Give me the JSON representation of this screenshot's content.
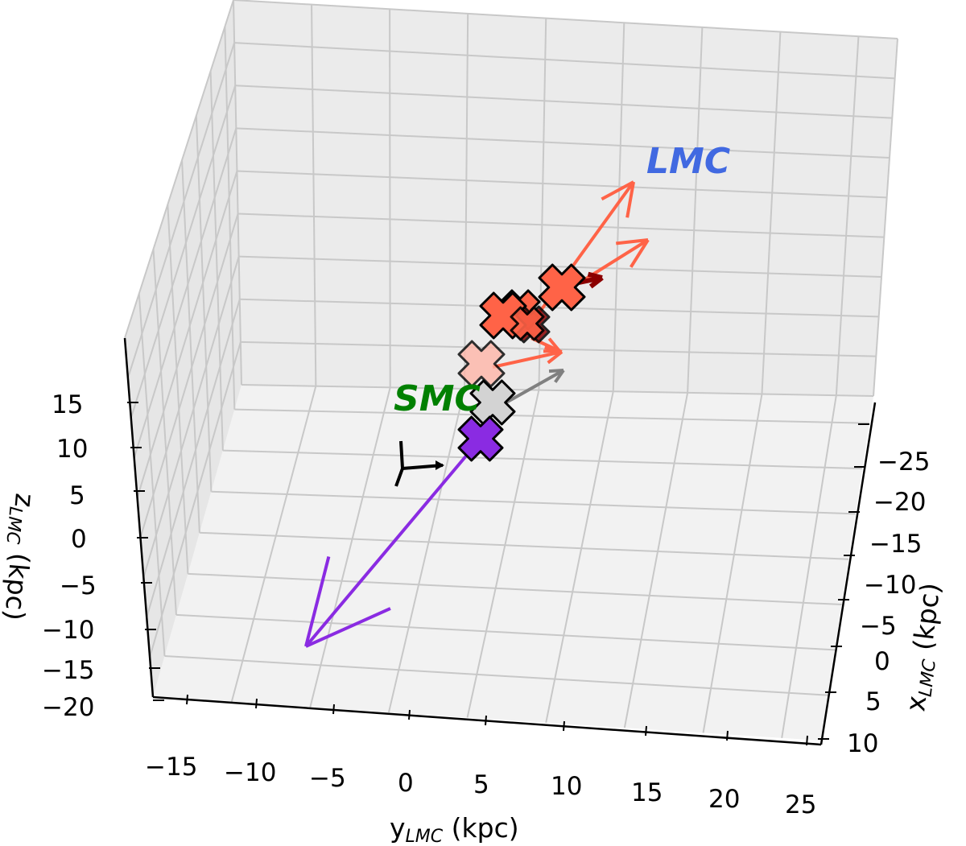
{
  "chart_data": {
    "type": "3d-scatter-vectors",
    "title": "",
    "xlabel": "x_LMC (kpc)",
    "ylabel": "y_LMC (kpc)",
    "zlabel": "z_LMC (kpc)",
    "xlabel_main": "x",
    "xlabel_sub": "LMC",
    "xlabel_unit": " (kpc)",
    "ylabel_main": "y",
    "ylabel_sub": "LMC",
    "ylabel_unit": " (kpc)",
    "zlabel_main": "z",
    "zlabel_sub": "LMC",
    "zlabel_unit": " (kpc)",
    "x_ticks": [
      "−25",
      "−20",
      "−15",
      "−10",
      "−5",
      "0",
      "5",
      "10"
    ],
    "y_ticks": [
      "−15",
      "−10",
      "−5",
      "0",
      "5",
      "10",
      "15",
      "20",
      "25"
    ],
    "z_ticks": [
      "15",
      "10",
      "5",
      "0",
      "−5",
      "−10",
      "−15",
      "−20"
    ],
    "xlim": [
      -28,
      12
    ],
    "ylim": [
      -18,
      27
    ],
    "zlim": [
      -22,
      18
    ],
    "grid": true,
    "annotations": [
      {
        "text": "LMC",
        "color": "#4169e1"
      },
      {
        "text": "SMC",
        "color": "#008000"
      }
    ],
    "series": [
      {
        "name": "purple object",
        "color": "#8a2be2",
        "marker": "X",
        "velocity_arrow": true
      },
      {
        "name": "grey object",
        "color": "#d3d3d3",
        "marker": "X",
        "velocity_arrow": true
      },
      {
        "name": "light salmon objects",
        "color": "#ffb6a8",
        "marker": "X",
        "velocity_arrow": true
      },
      {
        "name": "tomato objects",
        "color": "#ff6347",
        "marker": "X",
        "velocity_arrow": true
      },
      {
        "name": "dark red objects",
        "color": "#8b0000",
        "marker": "X",
        "velocity_arrow": true
      },
      {
        "name": "reference frame",
        "color": "#000000",
        "marker": "tripod"
      }
    ]
  }
}
